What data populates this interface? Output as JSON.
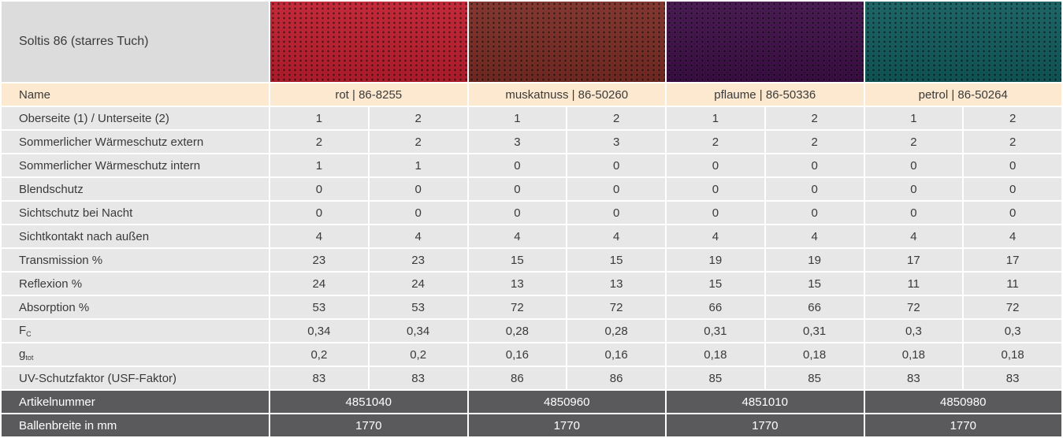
{
  "header": {
    "title": "Soltis 86 (starres Tuch)"
  },
  "fabrics": [
    {
      "name": "rot | 86-8255",
      "swatch": "#c21b2c",
      "article_number": "4851040",
      "roll_width": "1770"
    },
    {
      "name": "muskatnuss | 86-50260",
      "swatch": "#7b2a22",
      "article_number": "4850960",
      "roll_width": "1770"
    },
    {
      "name": "pflaume | 86-50336",
      "swatch": "#3d0b47",
      "article_number": "4851010",
      "roll_width": "1770"
    },
    {
      "name": "petrol | 86-50264",
      "swatch": "#0e5b5d",
      "article_number": "4850980",
      "roll_width": "1770"
    }
  ],
  "name_label": "Name",
  "rows": [
    {
      "label": {
        "main": "Oberseite (1) / Unterseite (2)"
      },
      "values": [
        "1",
        "2",
        "1",
        "2",
        "1",
        "2",
        "1",
        "2"
      ]
    },
    {
      "label": {
        "main": "Sommerlicher Wärmeschutz extern"
      },
      "values": [
        "2",
        "2",
        "3",
        "3",
        "2",
        "2",
        "2",
        "2"
      ]
    },
    {
      "label": {
        "main": "Sommerlicher Wärmeschutz intern"
      },
      "values": [
        "1",
        "1",
        "0",
        "0",
        "0",
        "0",
        "0",
        "0"
      ]
    },
    {
      "label": {
        "main": "Blendschutz"
      },
      "values": [
        "0",
        "0",
        "0",
        "0",
        "0",
        "0",
        "0",
        "0"
      ]
    },
    {
      "label": {
        "main": "Sichtschutz bei Nacht"
      },
      "values": [
        "0",
        "0",
        "0",
        "0",
        "0",
        "0",
        "0",
        "0"
      ]
    },
    {
      "label": {
        "main": "Sichtkontakt nach außen"
      },
      "values": [
        "4",
        "4",
        "4",
        "4",
        "4",
        "4",
        "4",
        "4"
      ]
    },
    {
      "label": {
        "main": "Transmission %"
      },
      "values": [
        "23",
        "23",
        "15",
        "15",
        "19",
        "19",
        "17",
        "17"
      ]
    },
    {
      "label": {
        "main": "Reflexion %"
      },
      "values": [
        "24",
        "24",
        "13",
        "13",
        "15",
        "15",
        "11",
        "11"
      ]
    },
    {
      "label": {
        "main": "Absorption %"
      },
      "values": [
        "53",
        "53",
        "72",
        "72",
        "66",
        "66",
        "72",
        "72"
      ]
    },
    {
      "label": {
        "main": "F",
        "sub": "C"
      },
      "values": [
        "0,34",
        "0,34",
        "0,28",
        "0,28",
        "0,31",
        "0,31",
        "0,3",
        "0,3"
      ]
    },
    {
      "label": {
        "main": "g",
        "sub": "tot"
      },
      "values": [
        "0,2",
        "0,2",
        "0,16",
        "0,16",
        "0,18",
        "0,18",
        "0,18",
        "0,18"
      ]
    },
    {
      "label": {
        "main": "UV-Schutzfaktor (USF-Faktor)"
      },
      "values": [
        "83",
        "83",
        "86",
        "86",
        "85",
        "85",
        "83",
        "83"
      ]
    }
  ],
  "footer_labels": [
    "Artikelnummer",
    "Ballenbreite in mm"
  ]
}
